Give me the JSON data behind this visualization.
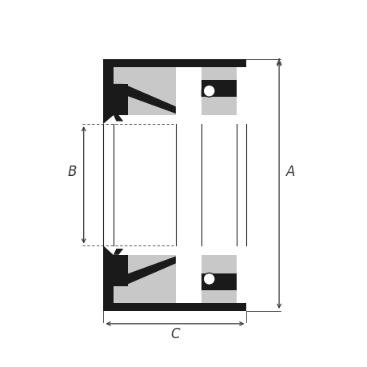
{
  "bg_color": "#ffffff",
  "line_color": "#222222",
  "fill_black": "#1a1a1a",
  "fill_gray": "#c8c8c8",
  "fill_white": "#ffffff",
  "dim_color": "#333333",
  "figsize": [
    4.6,
    4.6
  ],
  "dpi": 100,
  "label_A": "A",
  "label_B": "B",
  "label_C": "C",
  "lw": 1.0
}
